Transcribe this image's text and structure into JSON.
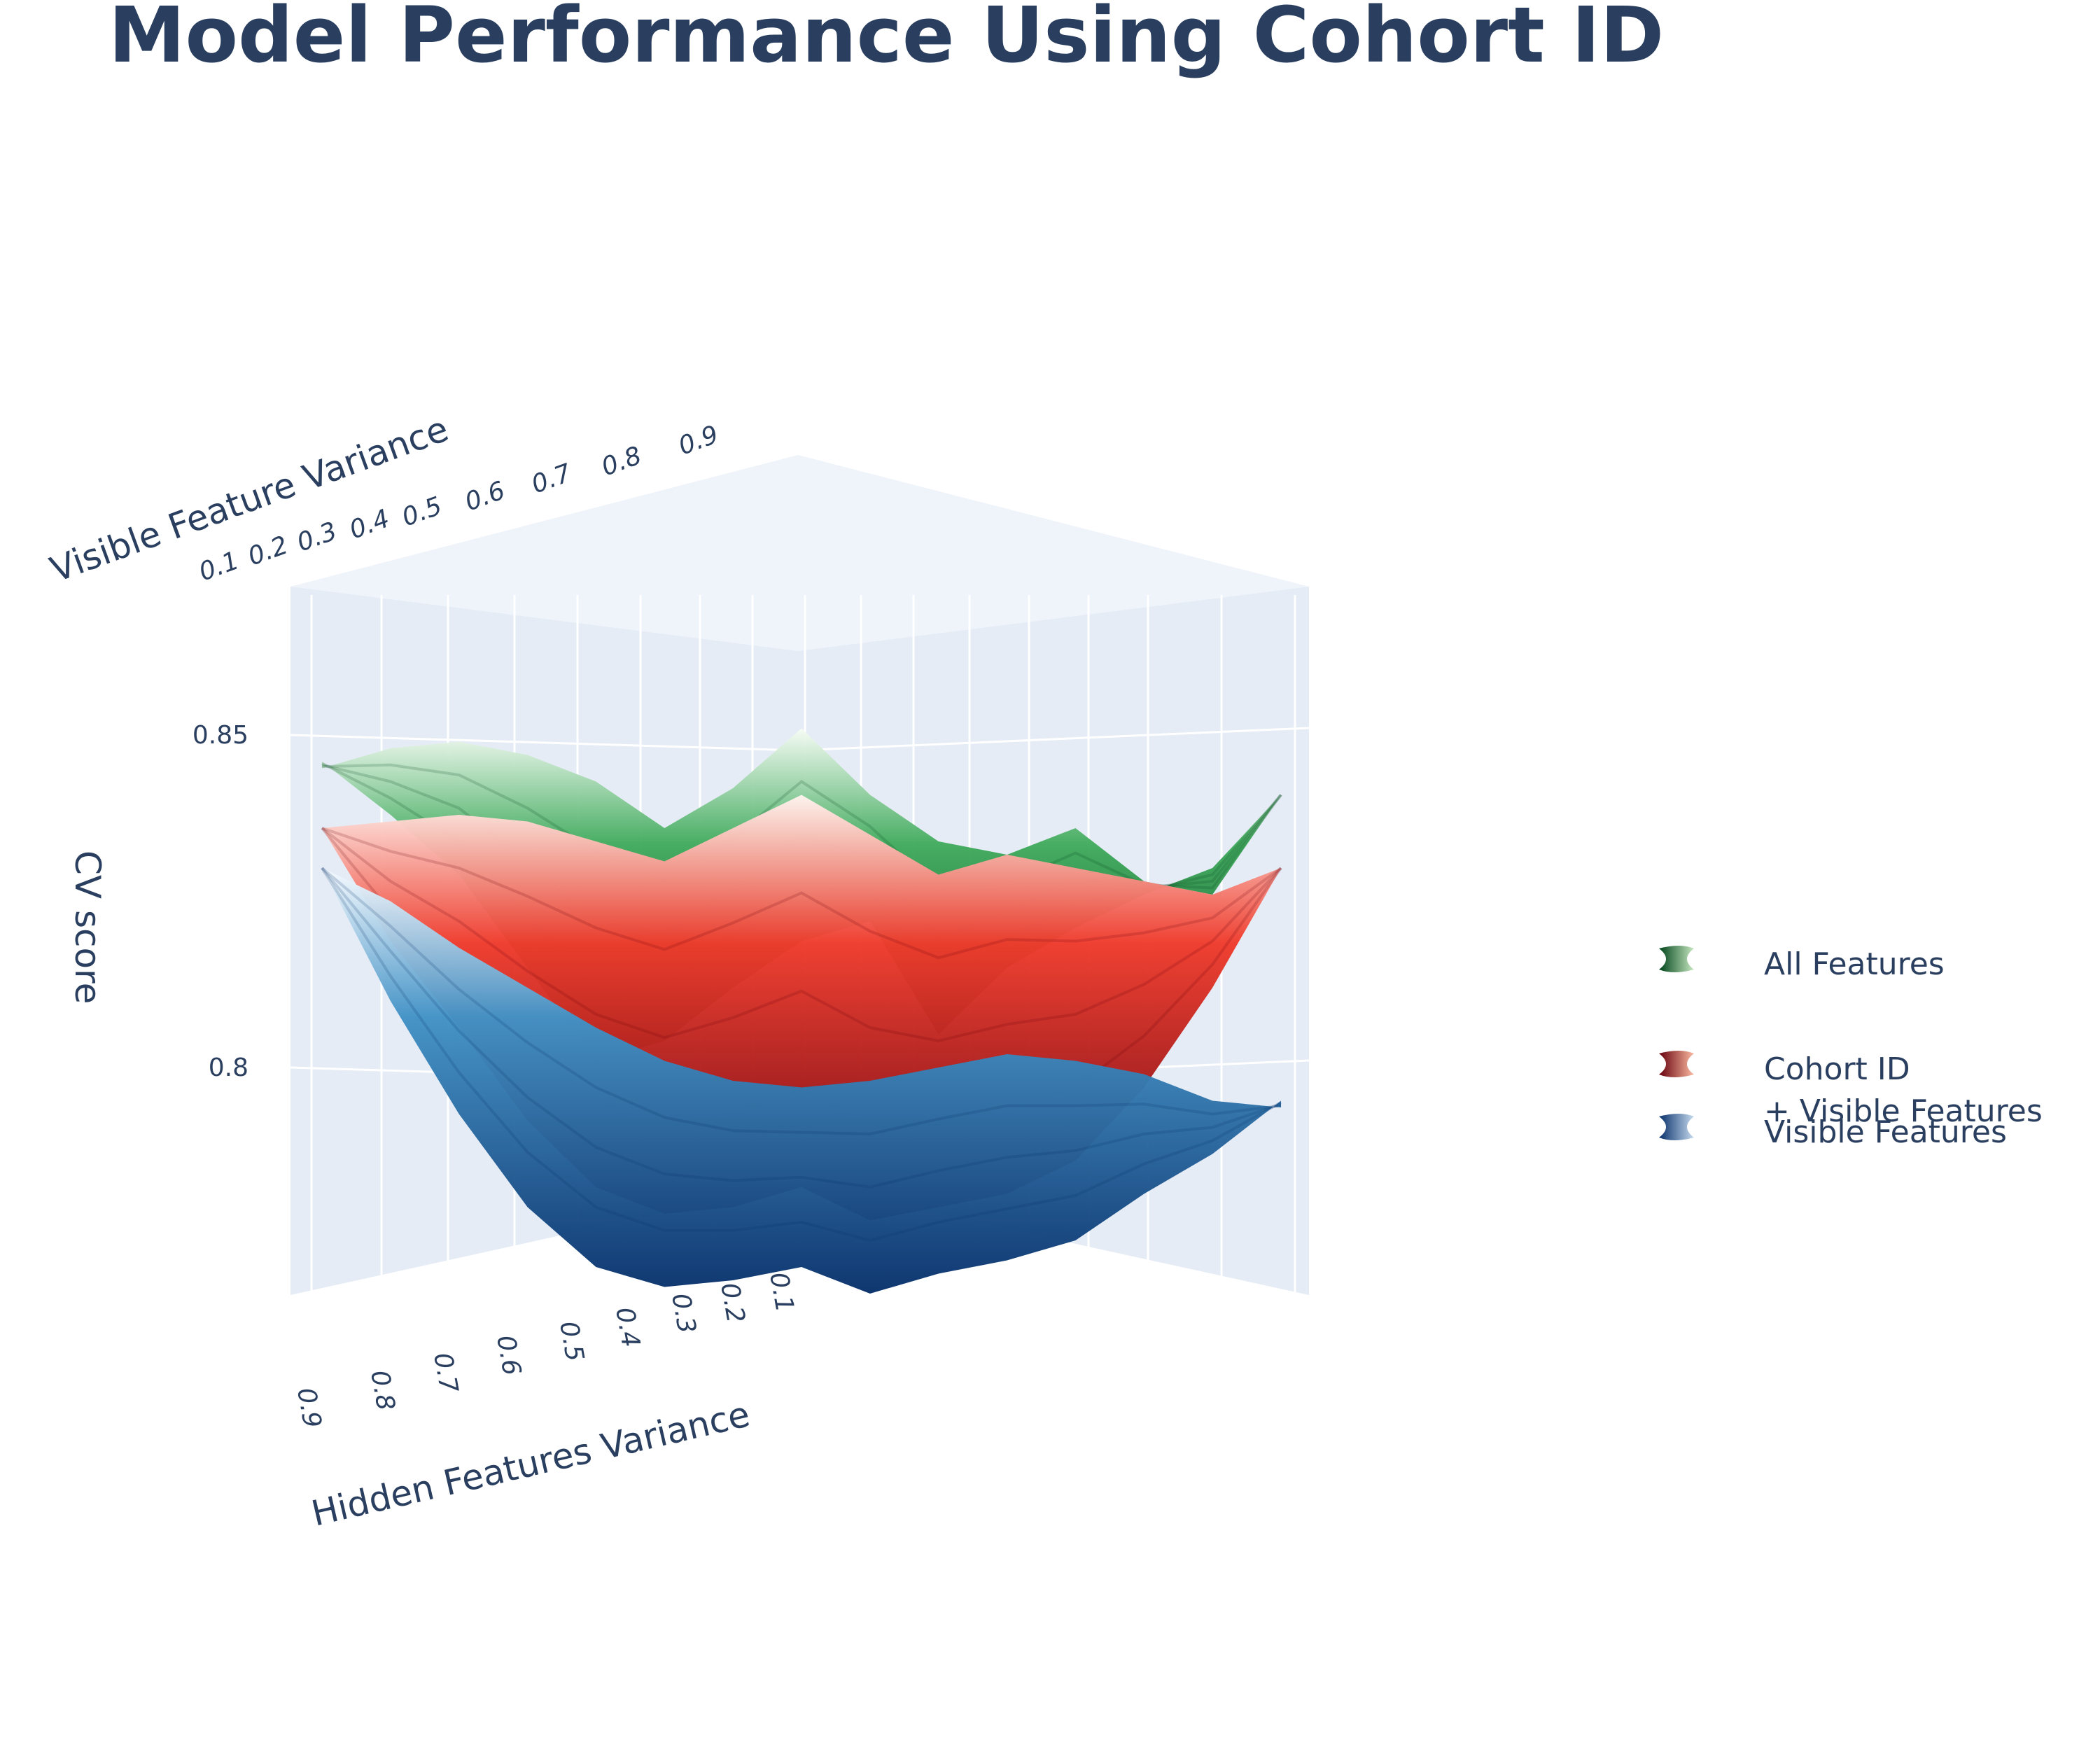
{
  "chart_data": {
    "type": "surface",
    "title": "Model Performance Using Cohort ID",
    "xlabel": "Hidden Features Variance",
    "ylabel": "Visible Feature Variance",
    "zlabel": "CV score",
    "x_ticks": [
      "0.9",
      "0.8",
      "0.7",
      "0.6",
      "0.5",
      "0.4",
      "0.3",
      "0.2",
      "0.1"
    ],
    "y_ticks": [
      "0.1",
      "0.2",
      "0.3",
      "0.4",
      "0.5",
      "0.6",
      "0.7",
      "0.8",
      "0.9"
    ],
    "z_ticks": [
      "0.8",
      "0.85"
    ],
    "zlim": [
      0.765,
      0.875
    ],
    "x": [
      0.9,
      0.8,
      0.7,
      0.6,
      0.5,
      0.4,
      0.3,
      0.2,
      0.1
    ],
    "legend_position": "right",
    "series": [
      {
        "name": "All Features",
        "colorscale": "Greens",
        "color_low": "#00441b",
        "color_mid": "#41ab5d",
        "color_high": "#f7fcf5",
        "front_edge": [
          0.846,
          0.838,
          0.829,
          0.815,
          0.801,
          0.804,
          0.812,
          0.819,
          0.822,
          0.805,
          0.815,
          0.821,
          0.826,
          0.83,
          0.841
        ],
        "back_edge": [
          0.845,
          0.848,
          0.849,
          0.847,
          0.843,
          0.836,
          0.842,
          0.851,
          0.841,
          0.834,
          0.832,
          0.836,
          0.828,
          0.826,
          0.841
        ]
      },
      {
        "name": "Cohort ID\n+ Visible Features",
        "colorscale": "Reds",
        "color_low": "#67000d",
        "color_mid": "#ef3b2c",
        "color_high": "#fff5f0",
        "front_edge": [
          0.836,
          0.819,
          0.806,
          0.792,
          0.782,
          0.778,
          0.779,
          0.782,
          0.777,
          0.779,
          0.781,
          0.786,
          0.797,
          0.812,
          0.83
        ],
        "back_edge": [
          0.836,
          0.837,
          0.838,
          0.837,
          0.834,
          0.831,
          0.836,
          0.841,
          0.835,
          0.829,
          0.832,
          0.83,
          0.828,
          0.826,
          0.83
        ]
      },
      {
        "name": "Visible Features",
        "colorscale": "Blues",
        "color_low": "#08306b",
        "color_mid": "#4292c6",
        "color_high": "#f7fbff",
        "front_edge": [
          0.83,
          0.81,
          0.793,
          0.779,
          0.77,
          0.767,
          0.768,
          0.77,
          0.766,
          0.769,
          0.771,
          0.774,
          0.781,
          0.787,
          0.795
        ],
        "back_edge": [
          0.83,
          0.825,
          0.818,
          0.812,
          0.806,
          0.801,
          0.798,
          0.797,
          0.798,
          0.8,
          0.802,
          0.801,
          0.799,
          0.795,
          0.794
        ]
      }
    ]
  },
  "legend": {
    "items": [
      {
        "line1": "All Features",
        "line2": "",
        "color_dark": "#00441b",
        "color_light": "#c7e9c0"
      },
      {
        "line1": "Cohort ID",
        "line2": "+ Visible Features",
        "color_dark": "#67000d",
        "color_light": "#fcbba1"
      },
      {
        "line1": "Visible Features",
        "line2": "",
        "color_dark": "#08306b",
        "color_light": "#c6dbef"
      }
    ]
  }
}
